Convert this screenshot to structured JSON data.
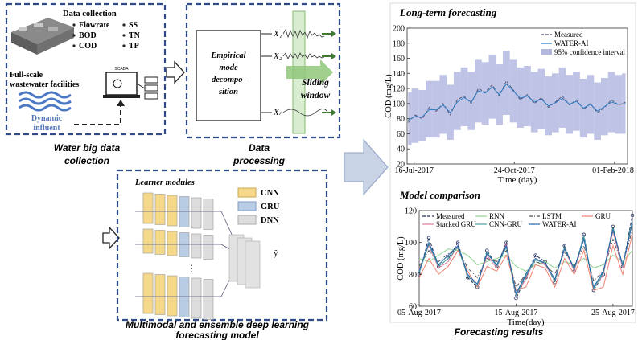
{
  "diagram": {
    "collection": {
      "heading": "Data collection",
      "parameters": [
        "Flowrate",
        "SS",
        "BOD",
        "TN",
        "COD",
        "TP"
      ],
      "facility_label": [
        "Full-scale",
        "wastewater facilities"
      ],
      "scada": "SCADA",
      "influent_label": [
        "Dynamic",
        "influent"
      ],
      "caption": [
        "Water big data",
        "collection"
      ]
    },
    "processing": {
      "emd_label": [
        "Empirical",
        "mode",
        "decompo-",
        "sition"
      ],
      "components": [
        "X₁",
        "X₂",
        "Xₙ"
      ],
      "window_label": [
        "Sliding",
        "window"
      ],
      "caption": [
        "Data",
        "processing"
      ]
    },
    "model": {
      "heading": "Learner modules",
      "legend": [
        "CNN",
        "GRU",
        "DNN"
      ],
      "output": "ŷ",
      "ellipsis": "⋮",
      "caption": [
        "Multimodal and ensemble deep learning",
        "forecasting model"
      ]
    },
    "results_caption": "Forecasting results"
  },
  "chart_data": [
    {
      "type": "line",
      "title": "Long-term forecasting",
      "x_label": "Time (day)",
      "y_label": "COD (mg/L)",
      "x": [
        "2017-07-10",
        "2017-07-17",
        "2017-07-24",
        "2017-07-31",
        "2017-08-07",
        "2017-08-14",
        "2017-08-21",
        "2017-08-28",
        "2017-09-04",
        "2017-09-11",
        "2017-09-18",
        "2017-09-25",
        "2017-10-02",
        "2017-10-09",
        "2017-10-16",
        "2017-10-23",
        "2017-10-30",
        "2017-11-06",
        "2017-11-13",
        "2017-11-20",
        "2017-11-27",
        "2017-12-04",
        "2017-12-11",
        "2017-12-18",
        "2017-12-25",
        "2018-01-01",
        "2018-01-08",
        "2018-01-15",
        "2018-01-22",
        "2018-01-29",
        "2018-02-05",
        "2018-02-12"
      ],
      "xlim": [
        "2017-07-09",
        "2018-02-14"
      ],
      "xticks": [
        {
          "value": "2017-07-16",
          "label": "16-Jul-2017"
        },
        {
          "value": "2017-10-24",
          "label": "24-Oct-2017"
        },
        {
          "value": "2018-02-01",
          "label": "01-Feb-2018"
        }
      ],
      "ylim": [
        20,
        200
      ],
      "yticks": [
        20,
        40,
        60,
        80,
        100,
        120,
        140,
        160,
        180,
        200
      ],
      "legend": "upper right",
      "series": [
        {
          "name": "Measured",
          "color": "#4a4f6a",
          "line_style": "dashed",
          "values": [
            75,
            85,
            80,
            95,
            90,
            100,
            85,
            105,
            110,
            100,
            120,
            115,
            125,
            110,
            130,
            118,
            105,
            112,
            100,
            108,
            95,
            102,
            110,
            98,
            105,
            92,
            100,
            88,
            95,
            105,
            98,
            102
          ]
        },
        {
          "name": "WATER-AI",
          "color": "#1f77c4",
          "line_style": "solid",
          "values": [
            78,
            83,
            82,
            92,
            92,
            98,
            88,
            102,
            108,
            102,
            117,
            114,
            122,
            112,
            126,
            117,
            107,
            110,
            102,
            106,
            97,
            101,
            107,
            99,
            103,
            94,
            99,
            90,
            96,
            102,
            99,
            100
          ]
        }
      ],
      "band": {
        "name": "95% confidence interval",
        "color": "#b4b8e0",
        "lower": [
          45,
          48,
          50,
          55,
          55,
          60,
          52,
          65,
          70,
          65,
          75,
          72,
          80,
          72,
          85,
          75,
          68,
          70,
          62,
          66,
          58,
          62,
          68,
          60,
          64,
          55,
          60,
          52,
          58,
          62,
          60,
          60
        ],
        "upper": [
          115,
          120,
          118,
          130,
          130,
          138,
          125,
          142,
          148,
          142,
          158,
          155,
          165,
          152,
          170,
          158,
          148,
          150,
          142,
          146,
          136,
          140,
          148,
          138,
          142,
          133,
          138,
          128,
          134,
          142,
          138,
          140
        ]
      }
    },
    {
      "type": "line",
      "title": "Model comparison",
      "x_label": "Time(day)",
      "y_label": "COD (mg/L)",
      "x": [
        "2017-08-05",
        "2017-08-06",
        "2017-08-07",
        "2017-08-08",
        "2017-08-09",
        "2017-08-10",
        "2017-08-11",
        "2017-08-12",
        "2017-08-13",
        "2017-08-14",
        "2017-08-15",
        "2017-08-16",
        "2017-08-17",
        "2017-08-18",
        "2017-08-19",
        "2017-08-20",
        "2017-08-21",
        "2017-08-22",
        "2017-08-23",
        "2017-08-24",
        "2017-08-25",
        "2017-08-26",
        "2017-08-27"
      ],
      "xlim": [
        "2017-08-05",
        "2017-08-27"
      ],
      "xticks": [
        {
          "value": "2017-08-05",
          "label": "05-Aug-2017"
        },
        {
          "value": "2017-08-15",
          "label": "15-Aug-2017"
        },
        {
          "value": "2017-08-25",
          "label": "25-Aug-2017"
        }
      ],
      "ylim": [
        60,
        120
      ],
      "yticks": [
        60,
        80,
        100,
        120
      ],
      "legend": "upper",
      "series": [
        {
          "name": "Measured",
          "color": "#1f2d5a",
          "line_style": "dashed",
          "marker": true,
          "values": [
            80,
            103,
            85,
            90,
            100,
            78,
            72,
            95,
            85,
            100,
            65,
            78,
            92,
            88,
            75,
            98,
            82,
            105,
            70,
            80,
            110,
            85,
            117
          ]
        },
        {
          "name": "RNN",
          "color": "#8bd18b",
          "line_style": "solid",
          "values": [
            90,
            88,
            92,
            96,
            95,
            92,
            86,
            88,
            90,
            92,
            85,
            82,
            86,
            88,
            84,
            88,
            86,
            90,
            84,
            86,
            92,
            88,
            95
          ]
        },
        {
          "name": "LSTM",
          "color": "#555555",
          "line_style": "dashdot",
          "values": [
            85,
            95,
            88,
            93,
            96,
            84,
            78,
            90,
            88,
            95,
            72,
            80,
            88,
            86,
            80,
            94,
            85,
            98,
            76,
            82,
            102,
            86,
            108
          ]
        },
        {
          "name": "GRU",
          "color": "#f08070",
          "line_style": "solid",
          "values": [
            78,
            90,
            80,
            85,
            95,
            82,
            72,
            85,
            82,
            92,
            70,
            72,
            86,
            84,
            72,
            90,
            80,
            95,
            70,
            72,
            98,
            80,
            105
          ]
        },
        {
          "name": "Stacked GRU",
          "color": "#e07aa0",
          "line_style": "solid",
          "values": [
            83,
            98,
            84,
            88,
            98,
            79,
            73,
            92,
            84,
            99,
            67,
            77,
            90,
            86,
            76,
            96,
            82,
            103,
            71,
            80,
            107,
            84,
            113
          ]
        },
        {
          "name": "CNN-GRU",
          "color": "#4aa3a3",
          "line_style": "solid",
          "values": [
            81,
            99,
            85,
            90,
            97,
            79,
            73,
            94,
            85,
            97,
            67,
            79,
            89,
            87,
            76,
            97,
            83,
            104,
            71,
            81,
            109,
            85,
            114
          ]
        },
        {
          "name": "WATER-AI",
          "color": "#2166ac",
          "line_style": "solid",
          "values": [
            82,
            100,
            86,
            92,
            98,
            80,
            74,
            93,
            86,
            98,
            68,
            80,
            90,
            87,
            77,
            96,
            84,
            102,
            72,
            82,
            108,
            86,
            112
          ]
        }
      ]
    }
  ]
}
